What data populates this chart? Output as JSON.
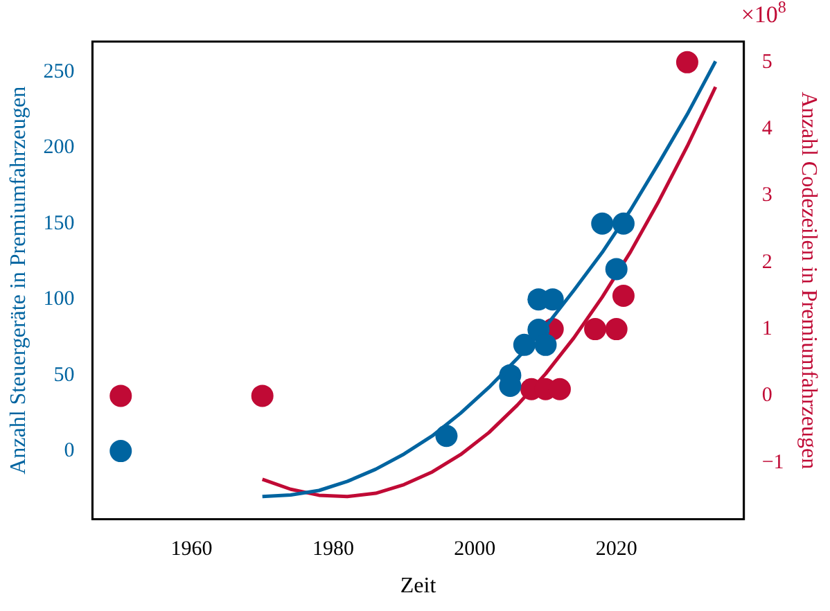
{
  "chart_data": {
    "type": "scatter",
    "xlabel": "Zeit",
    "ylabel": "Anzahl Steuergeräte in Premiumfahrzeugen",
    "y2label": "Anzahl Codezeilen in Premiumfahrzeugen",
    "annotations": [
      "×10$^{8}$"
    ],
    "xlim": [
      1946,
      2038
    ],
    "xticks": [
      1960,
      1980,
      2000,
      2020
    ],
    "ylim": [
      -45,
      270
    ],
    "yticks": [
      0,
      50,
      100,
      150,
      200,
      250
    ],
    "y2lim": [
      -1.85,
      5.31
    ],
    "y2ticks": [
      -1,
      0,
      1,
      2,
      3,
      4,
      5
    ],
    "grid": false,
    "legend": false,
    "series": [
      {
        "type": "scatter",
        "axis": "y",
        "marker": "circle",
        "color": "#0064a0",
        "x": [
          1950,
          1996,
          2005,
          2005,
          2007,
          2009,
          2010,
          2009,
          2011,
          2018,
          2021,
          2020
        ],
        "values": [
          0,
          10,
          50,
          43,
          70,
          80,
          70,
          100,
          100,
          150,
          150,
          120
        ]
      },
      {
        "type": "line",
        "axis": "y",
        "marker": "none",
        "color": "#0064a0",
        "x": [
          1970,
          1974,
          1978,
          1982,
          1986,
          1990,
          1994,
          1998,
          2002,
          2006,
          2010,
          2014,
          2018,
          2022,
          2026,
          2030,
          2034
        ],
        "values": [
          -30,
          -29,
          -26,
          -20,
          -12,
          -2,
          10,
          25,
          42,
          61,
          82,
          106,
          131,
          159,
          190,
          222,
          257
        ]
      },
      {
        "type": "scatter",
        "axis": "y2",
        "marker": "circle",
        "color": "#c00a35",
        "x": [
          1950,
          1970,
          2008,
          2010,
          2012,
          2011,
          2017,
          2020,
          2021,
          2030
        ],
        "values": [
          0,
          0,
          0.1,
          0.1,
          0.1,
          1,
          1,
          1,
          1.5,
          5
        ]
      },
      {
        "type": "line",
        "axis": "y2",
        "marker": "none",
        "color": "#c00a35",
        "x": [
          1970,
          1974,
          1978,
          1982,
          1986,
          1990,
          1994,
          1998,
          2002,
          2006,
          2010,
          2014,
          2018,
          2022,
          2026,
          2030,
          2034
        ],
        "values": [
          -1.25,
          -1.4,
          -1.49,
          -1.51,
          -1.46,
          -1.33,
          -1.14,
          -0.88,
          -0.55,
          -0.14,
          0.33,
          0.87,
          1.48,
          2.16,
          2.92,
          3.74,
          4.63
        ]
      }
    ]
  }
}
